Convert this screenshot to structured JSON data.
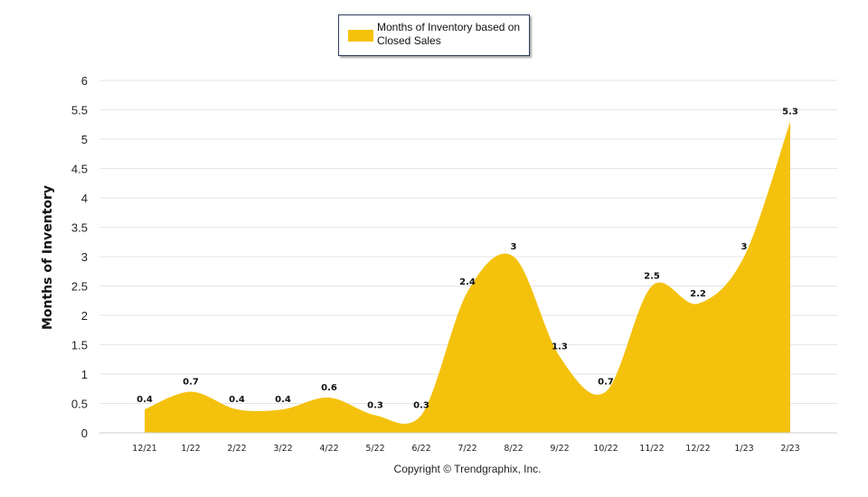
{
  "chart_data": {
    "type": "area",
    "title": "",
    "ylabel": "Months of Inventory",
    "xlabel": "",
    "categories": [
      "12/21",
      "1/22",
      "2/22",
      "3/22",
      "4/22",
      "5/22",
      "6/22",
      "7/22",
      "8/22",
      "9/22",
      "10/22",
      "11/22",
      "12/22",
      "1/23",
      "2/23"
    ],
    "series": [
      {
        "name": "Months of Inventory based on Closed Sales",
        "values": [
          0.4,
          0.7,
          0.4,
          0.4,
          0.6,
          0.3,
          0.3,
          2.4,
          3,
          1.3,
          0.7,
          2.5,
          2.2,
          3,
          5.3
        ],
        "color": "#f4c20d"
      }
    ],
    "value_labels": [
      "0.4",
      "0.7",
      "0.4",
      "0.4",
      "0.6",
      "0.3",
      "0.3",
      "2.4",
      "3",
      "1.3",
      "0.7",
      "2.5",
      "2.2",
      "3",
      "5.3"
    ],
    "ylim": [
      0,
      6
    ],
    "yticks": [
      "0",
      "0.5",
      "1",
      "1.5",
      "2",
      "2.5",
      "3",
      "3.5",
      "4",
      "4.5",
      "5",
      "5.5",
      "6"
    ],
    "grid": true,
    "legend_position": "top-center"
  },
  "legend": {
    "label": "Months of Inventory based on Closed Sales"
  },
  "footer": {
    "copyright": "Copyright © Trendgraphix, Inc."
  }
}
